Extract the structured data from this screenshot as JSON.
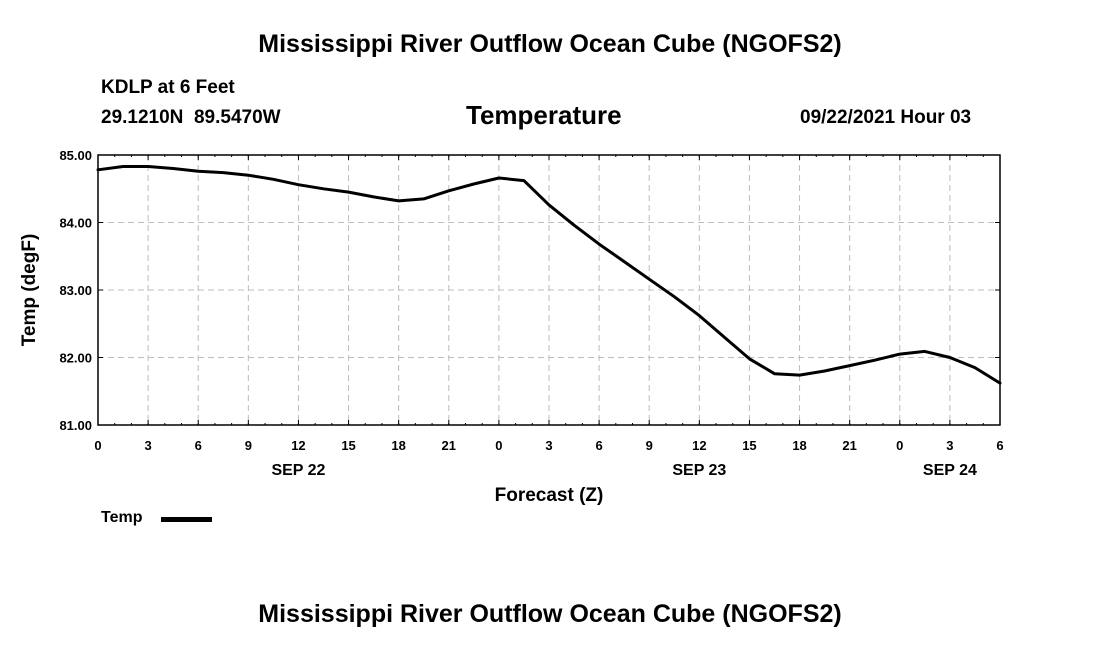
{
  "title": "Mississippi River Outflow Ocean Cube (NGOFS2)",
  "footer_title": "Mississippi River Outflow Ocean Cube (NGOFS2)",
  "station": {
    "name": "KDLP at 6 Feet",
    "coords": "29.1210N  89.5470W"
  },
  "variable": "Temperature",
  "timestamp": "09/22/2021 Hour 03",
  "legend": {
    "label": "Temp"
  },
  "colors": {
    "line": "#000000",
    "grid": "#bdbdbd"
  },
  "chart_data": {
    "type": "line",
    "title": "Temperature",
    "xlabel": "Forecast (Z)",
    "ylabel": "Temp (degF)",
    "xlim": [
      0,
      54
    ],
    "ylim": [
      81.0,
      85.0
    ],
    "grid": true,
    "legend_position": "bottom-left",
    "y_ticks": [
      "81.00",
      "82.00",
      "83.00",
      "84.00",
      "85.00"
    ],
    "x_ticks": [
      "0",
      "3",
      "6",
      "9",
      "12",
      "15",
      "18",
      "21",
      "0",
      "3",
      "6",
      "9",
      "12",
      "15",
      "18",
      "21",
      "0",
      "3",
      "6"
    ],
    "date_labels": [
      {
        "hour": 12,
        "label": "SEP 22"
      },
      {
        "hour": 36,
        "label": "SEP 23"
      },
      {
        "hour": 51,
        "label": "SEP 24"
      }
    ],
    "series": [
      {
        "name": "Temp",
        "x": [
          0,
          1.5,
          3,
          4.5,
          6,
          7.5,
          9,
          10.5,
          12,
          13.5,
          15,
          16.5,
          18,
          19.5,
          21,
          22.5,
          24,
          25.5,
          27,
          28.5,
          30,
          31.5,
          33,
          34.5,
          36,
          37.5,
          39,
          40.5,
          42,
          43.5,
          45,
          46.5,
          48,
          49.5,
          51,
          52.5,
          54
        ],
        "values": [
          84.78,
          84.83,
          84.83,
          84.8,
          84.76,
          84.74,
          84.7,
          84.64,
          84.56,
          84.5,
          84.45,
          84.38,
          84.32,
          84.35,
          84.47,
          84.57,
          84.66,
          84.62,
          84.26,
          83.96,
          83.68,
          83.42,
          83.16,
          82.9,
          82.62,
          82.3,
          81.98,
          81.76,
          81.74,
          81.8,
          81.88,
          81.96,
          82.05,
          82.09,
          82.0,
          81.85,
          81.62
        ]
      }
    ]
  }
}
